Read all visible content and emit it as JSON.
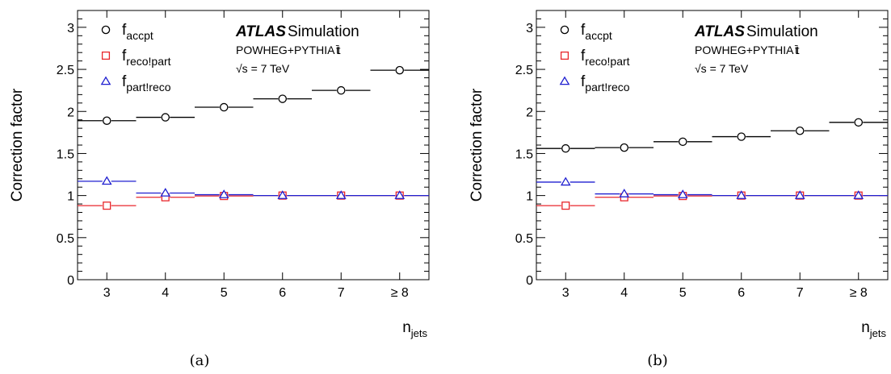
{
  "chart_data": [
    {
      "type": "scatter",
      "panel_label": "(a)",
      "ylabel": "Correction factor",
      "xlabel_main": "n",
      "xlabel_sub": "jets",
      "categories": [
        "3",
        "4",
        "5",
        "6",
        "7",
        "≥ 8"
      ],
      "ylim": [
        0,
        3.2
      ],
      "yticks": [
        "0",
        "0.5",
        "1",
        "1.5",
        "2",
        "2.5",
        "3"
      ],
      "atlas_label": "ATLAS",
      "atlas_sim": "Simulation",
      "generator_text": "POWHEG+PYTHIA t",
      "generator_suffix": "t̄",
      "energy_text": "√s = 7 TeV",
      "series": [
        {
          "name": "f",
          "sub": "accpt",
          "color": "#000000",
          "marker": "circle",
          "values": [
            1.89,
            1.93,
            2.05,
            2.15,
            2.25,
            2.49
          ]
        },
        {
          "name": "f",
          "sub": "reco!part",
          "color": "#e8262b",
          "marker": "square",
          "values": [
            0.88,
            0.98,
            0.995,
            1.0,
            1.0,
            1.0
          ]
        },
        {
          "name": "f",
          "sub": "part!reco",
          "color": "#1f1fd0",
          "marker": "triangle",
          "values": [
            1.17,
            1.03,
            1.01,
            1.0,
            1.0,
            1.0
          ]
        }
      ]
    },
    {
      "type": "scatter",
      "panel_label": "(b)",
      "ylabel": "Correction factor",
      "xlabel_main": "n",
      "xlabel_sub": "jets",
      "categories": [
        "3",
        "4",
        "5",
        "6",
        "7",
        "≥ 8"
      ],
      "ylim": [
        0,
        3.2
      ],
      "yticks": [
        "0",
        "0.5",
        "1",
        "1.5",
        "2",
        "2.5",
        "3"
      ],
      "atlas_label": "ATLAS",
      "atlas_sim": "Simulation",
      "generator_text": "POWHEG+PYTHIA t",
      "generator_suffix": "t̄",
      "energy_text": "√s = 7 TeV",
      "series": [
        {
          "name": "f",
          "sub": "accpt",
          "color": "#000000",
          "marker": "circle",
          "values": [
            1.56,
            1.57,
            1.64,
            1.7,
            1.77,
            1.87
          ]
        },
        {
          "name": "f",
          "sub": "reco!part",
          "color": "#e8262b",
          "marker": "square",
          "values": [
            0.88,
            0.98,
            0.995,
            1.0,
            1.0,
            1.0
          ]
        },
        {
          "name": "f",
          "sub": "part!reco",
          "color": "#1f1fd0",
          "marker": "triangle",
          "values": [
            1.16,
            1.02,
            1.01,
            1.0,
            1.0,
            1.0
          ]
        }
      ]
    }
  ]
}
